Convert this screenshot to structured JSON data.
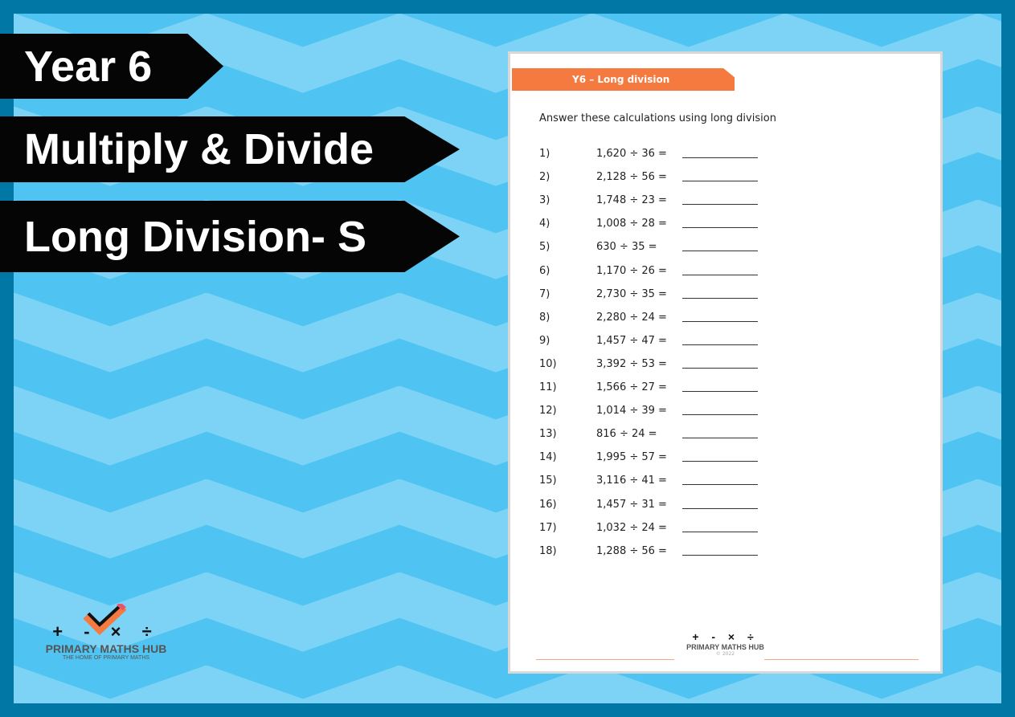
{
  "banners": [
    "Year 6",
    "Multiply & Divide",
    "Long Division- S"
  ],
  "worksheet": {
    "header": "Y6 – Long division",
    "instruction": "Answer these calculations using long division",
    "questions": [
      {
        "n": "1)",
        "e": "1,620 ÷ 36 ="
      },
      {
        "n": "2)",
        "e": "2,128 ÷ 56 ="
      },
      {
        "n": "3)",
        "e": "1,748 ÷ 23 ="
      },
      {
        "n": "4)",
        "e": "1,008 ÷ 28 ="
      },
      {
        "n": "5)",
        "e": "630 ÷ 35 ="
      },
      {
        "n": "6)",
        "e": "1,170 ÷ 26 ="
      },
      {
        "n": "7)",
        "e": "2,730 ÷ 35 ="
      },
      {
        "n": "8)",
        "e": "2,280 ÷ 24 ="
      },
      {
        "n": "9)",
        "e": "1,457 ÷ 47 ="
      },
      {
        "n": "10)",
        "e": "3,392 ÷ 53 ="
      },
      {
        "n": "11)",
        "e": "1,566 ÷ 27 ="
      },
      {
        "n": "12)",
        "e": "1,014 ÷ 39 ="
      },
      {
        "n": "13)",
        "e": "816 ÷ 24 ="
      },
      {
        "n": "14)",
        "e": "1,995 ÷ 57 ="
      },
      {
        "n": "15)",
        "e": "3,116 ÷ 41 ="
      },
      {
        "n": "16)",
        "e": "1,457 ÷ 31 ="
      },
      {
        "n": "17)",
        "e": "1,032 ÷ 24 ="
      },
      {
        "n": "18)",
        "e": "1,288 ÷ 56 ="
      }
    ],
    "footer": {
      "symbols": "+ -  × ÷",
      "brand": "PRIMARY MATHS HUB",
      "copyright": "© 2022"
    }
  },
  "logo": {
    "symbols": "+ -  × ÷",
    "brand": "PRIMARY MATHS HUB",
    "tagline": "THE HOME OF PRIMARY MATHS"
  },
  "colors": {
    "border": "#0077a4",
    "bg_dark": "#4fc4f2",
    "bg_light": "#7cd3f6",
    "accent": "#f47a40"
  }
}
